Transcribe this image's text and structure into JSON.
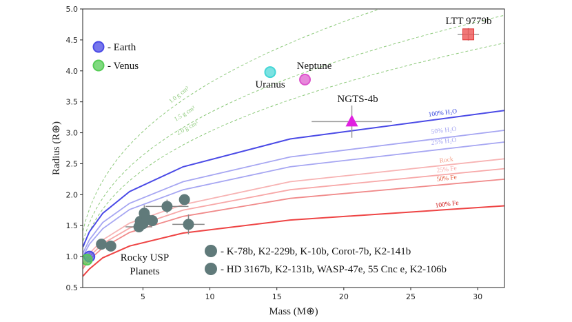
{
  "chart_data": {
    "type": "scatter",
    "title": "",
    "xlabel": "Mass (M⊕)",
    "ylabel": "Radius (R⊕)",
    "xlim": [
      0.5,
      32
    ],
    "ylim": [
      0.5,
      5.0
    ],
    "x_ticks": [
      5,
      10,
      15,
      20,
      25,
      30
    ],
    "x_tick_labels": [
      "5",
      "10",
      "15",
      "20",
      "25",
      "30"
    ],
    "y_ticks": [
      0.5,
      1.0,
      1.5,
      2.0,
      2.5,
      3.0,
      3.5,
      4.0,
      4.5,
      5.0
    ],
    "y_tick_labels": [
      "0.5",
      "1.0",
      "1.5",
      "2.0",
      "2.5",
      "3.0",
      "3.5",
      "4.0",
      "4.5",
      "5.0"
    ],
    "grid": false,
    "composition_curves": [
      {
        "name": "100% H2O",
        "label": "100% H₂O",
        "color": "#4a4ae6",
        "x": [
          0.5,
          1,
          2,
          4,
          8,
          16,
          32
        ],
        "y": [
          1.15,
          1.4,
          1.7,
          2.05,
          2.45,
          2.9,
          3.36
        ]
      },
      {
        "name": "50% H2O",
        "label": "50% H₂O",
        "color": "#a6a6f2",
        "x": [
          0.5,
          1,
          2,
          4,
          8,
          16,
          32
        ],
        "y": [
          1.05,
          1.27,
          1.55,
          1.86,
          2.21,
          2.61,
          3.04
        ]
      },
      {
        "name": "25% H2O",
        "label": "25% H₂O",
        "color": "#a6a6f2",
        "x": [
          0.5,
          1,
          2,
          4,
          8,
          16,
          32
        ],
        "y": [
          1.0,
          1.2,
          1.45,
          1.76,
          2.08,
          2.45,
          2.85
        ]
      },
      {
        "name": "Rock",
        "label": "Rock",
        "color": "#f7b3b3",
        "x": [
          0.5,
          1,
          2,
          4,
          8,
          16,
          32
        ],
        "y": [
          0.88,
          1.05,
          1.27,
          1.54,
          1.84,
          2.21,
          2.58
        ]
      },
      {
        "name": "25% Fe",
        "label": "25% Fe",
        "color": "#f7a8a8",
        "x": [
          0.5,
          1,
          2,
          4,
          8,
          16,
          32
        ],
        "y": [
          0.84,
          1.0,
          1.21,
          1.46,
          1.75,
          2.08,
          2.42
        ]
      },
      {
        "name": "50% Fe",
        "label": "50% Fe",
        "color": "#f08a8a",
        "x": [
          0.5,
          1,
          2,
          4,
          8,
          16,
          32
        ],
        "y": [
          0.8,
          0.95,
          1.14,
          1.39,
          1.65,
          1.94,
          2.25
        ]
      },
      {
        "name": "100% Fe",
        "label": "100% Fe",
        "color": "#ee4444",
        "x": [
          0.5,
          1,
          2,
          4,
          8,
          16,
          32
        ],
        "y": [
          0.68,
          0.8,
          0.98,
          1.17,
          1.38,
          1.59,
          1.82
        ]
      }
    ],
    "density_curves": [
      {
        "name": "1.0 g cm-3",
        "label": "1.0 g cm³",
        "density": 1.0
      },
      {
        "name": "1.5 g cm-3",
        "label": "1.5 g cm³",
        "density": 1.5
      },
      {
        "name": "2.0 g cm-3",
        "label": "2.0 g cm³",
        "density": 2.0
      }
    ],
    "density_color": "#8cc97a",
    "solar_system": [
      {
        "name": "Earth",
        "x": 1.0,
        "y": 1.0,
        "color": "#4a4ae6"
      },
      {
        "name": "Venus",
        "x": 0.815,
        "y": 0.95,
        "color": "#55cc55"
      },
      {
        "name": "Uranus",
        "x": 14.5,
        "y": 3.98,
        "color": "#44d6d6",
        "label": "Uranus"
      },
      {
        "name": "Neptune",
        "x": 17.1,
        "y": 3.86,
        "color": "#dd55cc",
        "label": "Neptune"
      }
    ],
    "highlighted": [
      {
        "name": "NGTS-4b",
        "label": "NGTS-4b",
        "x": 20.6,
        "y": 3.18,
        "xerr": 3.0,
        "yerr": 0.26,
        "marker": "triangle",
        "color": "#e020e0"
      },
      {
        "name": "LTT 9779b",
        "label": "LTT 9779b",
        "x": 29.3,
        "y": 4.59,
        "xerr": 0.8,
        "yerr": 0.1,
        "marker": "square",
        "color": "#ee5555"
      }
    ],
    "usp_planets": {
      "label": "Rocky USP Planets",
      "color": "#607a7a",
      "points": [
        {
          "x": 1.9,
          "y": 1.2,
          "xerr": 0,
          "yerr": 0
        },
        {
          "x": 2.6,
          "y": 1.17,
          "xerr": 0,
          "yerr": 0
        },
        {
          "x": 4.7,
          "y": 1.48,
          "xerr": 1.0,
          "yerr": 0
        },
        {
          "x": 4.8,
          "y": 1.57,
          "xerr": 0,
          "yerr": 0
        },
        {
          "x": 5.0,
          "y": 1.53,
          "xerr": 0,
          "yerr": 0
        },
        {
          "x": 5.1,
          "y": 1.7,
          "xerr": 0,
          "yerr": 0.13
        },
        {
          "x": 5.3,
          "y": 1.6,
          "xerr": 0,
          "yerr": 0
        },
        {
          "x": 5.7,
          "y": 1.58,
          "xerr": 0,
          "yerr": 0
        },
        {
          "x": 6.8,
          "y": 1.81,
          "xerr": 1.6,
          "yerr": 0.11
        },
        {
          "x": 8.1,
          "y": 1.92,
          "xerr": 0,
          "yerr": 0
        },
        {
          "x": 8.4,
          "y": 1.52,
          "xerr": 1.2,
          "yerr": 0.16
        }
      ]
    },
    "legend": {
      "placement": "top-left",
      "entries": [
        {
          "marker": "earth",
          "text": "- Earth"
        },
        {
          "marker": "venus",
          "text": "- Venus"
        }
      ]
    },
    "usp_legend": {
      "placement": "bottom-right",
      "entries": [
        {
          "text": "- K-78b, K2-229b, K-10b, Corot-7b, K2-141b"
        },
        {
          "text": "- HD 3167b, K2-131b, WASP-47e, 55 Cnc e, K2-106b"
        }
      ]
    }
  }
}
